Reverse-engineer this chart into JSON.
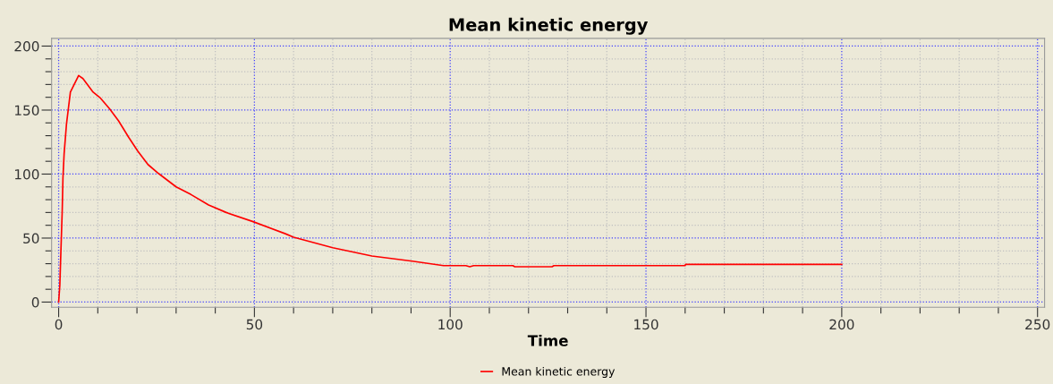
{
  "chart_data": {
    "type": "line",
    "title": "Mean kinetic energy",
    "xlabel": "Time",
    "x": [
      0,
      0.3,
      0.6,
      0.9,
      1.1,
      1.4,
      2.0,
      3.0,
      5.1,
      6.2,
      8.8,
      10.7,
      13,
      15.3,
      17.9,
      20.2,
      22.8,
      25.5,
      30,
      33.8,
      38.3,
      42.8,
      49.5,
      57.9,
      60,
      70,
      80,
      90.3,
      98.3,
      104,
      105,
      106,
      116,
      116.5,
      126,
      126.5,
      140,
      160,
      160.1,
      200
    ],
    "series": [
      {
        "name": "Mean kinetic energy",
        "color": "#ff0000",
        "values": [
          0,
          13,
          42,
          70,
          97,
          116,
          139,
          164,
          177,
          174.6,
          164,
          159.3,
          151,
          141.6,
          128.7,
          118,
          107.5,
          100.5,
          90,
          84,
          75.8,
          70,
          63,
          53.4,
          50.7,
          42.5,
          36,
          32,
          28.5,
          28.5,
          27.6,
          28.5,
          28.5,
          27.6,
          27.6,
          28.5,
          28.5,
          28.5,
          29.5,
          29.5
        ]
      }
    ],
    "xlim": [
      -1.8,
      251.8
    ],
    "ylim": [
      -4,
      206
    ],
    "xticks": [
      0,
      {
        "value": 10,
        "label": null
      },
      {
        "value": 20,
        "label": null
      },
      {
        "value": 30,
        "label": null
      },
      {
        "value": 40,
        "label": null
      },
      50,
      {
        "value": 60,
        "label": null
      },
      {
        "value": 70,
        "label": null
      },
      {
        "value": 80,
        "label": null
      },
      {
        "value": 90,
        "label": null
      },
      100,
      {
        "value": 110,
        "label": null
      },
      {
        "value": 120,
        "label": null
      },
      {
        "value": 130,
        "label": null
      },
      {
        "value": 140,
        "label": null
      },
      150,
      {
        "value": 160,
        "label": null
      },
      {
        "value": 170,
        "label": null
      },
      {
        "value": 180,
        "label": null
      },
      {
        "value": 190,
        "label": null
      },
      200,
      {
        "value": 210,
        "label": null
      },
      {
        "value": 220,
        "label": null
      },
      {
        "value": 230,
        "label": null
      },
      {
        "value": 240,
        "label": null
      },
      250
    ],
    "yticks": [
      0,
      {
        "value": 10,
        "label": null
      },
      {
        "value": 20,
        "label": null
      },
      {
        "value": 30,
        "label": null
      },
      {
        "value": 40,
        "label": null
      },
      50,
      {
        "value": 60,
        "label": null
      },
      {
        "value": 70,
        "label": null
      },
      {
        "value": 80,
        "label": null
      },
      {
        "value": 90,
        "label": null
      },
      100,
      {
        "value": 110,
        "label": null
      },
      {
        "value": 120,
        "label": null
      },
      {
        "value": 130,
        "label": null
      },
      {
        "value": 140,
        "label": null
      },
      150,
      {
        "value": 160,
        "label": null
      },
      {
        "value": 170,
        "label": null
      },
      {
        "value": 180,
        "label": null
      },
      {
        "value": 190,
        "label": null
      },
      200
    ],
    "grid": true,
    "legend": "bottom",
    "marker": "none",
    "line_style": "solid"
  }
}
